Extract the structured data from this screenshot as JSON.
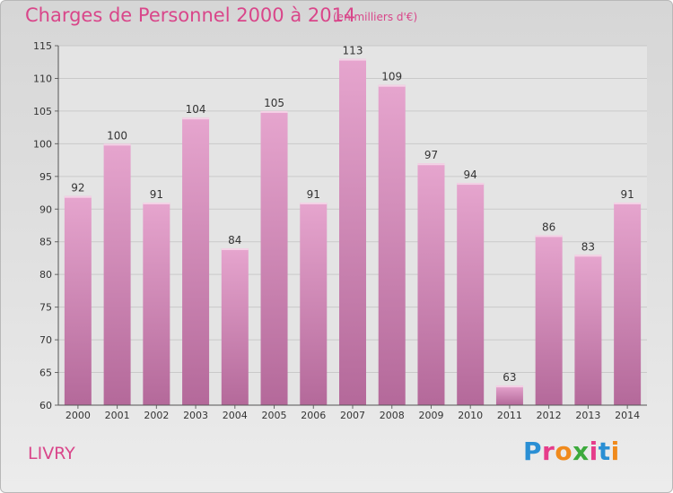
{
  "chart_data": {
    "type": "bar",
    "title": "Charges de Personnel 2000 à 2014",
    "subtitle": "(en milliers d'€)",
    "categories": [
      "2000",
      "2001",
      "2002",
      "2003",
      "2004",
      "2005",
      "2006",
      "2007",
      "2008",
      "2009",
      "2010",
      "2011",
      "2012",
      "2013",
      "2014"
    ],
    "values": [
      92,
      100,
      91,
      104,
      84,
      105,
      91,
      113,
      109,
      97,
      94,
      63,
      86,
      83,
      91
    ],
    "ylim": [
      60,
      115
    ],
    "yticks": [
      60,
      65,
      70,
      75,
      80,
      85,
      90,
      95,
      100,
      105,
      110,
      115
    ],
    "grid": true,
    "bar_color": "#c96fa4"
  },
  "footer": {
    "city": "LIVRY",
    "logo_letters": [
      {
        "ch": "P",
        "color": "#2a8fd4"
      },
      {
        "ch": "r",
        "color": "#e63c8a"
      },
      {
        "ch": "o",
        "color": "#f08a1c"
      },
      {
        "ch": "x",
        "color": "#3caa3c"
      },
      {
        "ch": "i",
        "color": "#e63c8a"
      },
      {
        "ch": "t",
        "color": "#2a8fd4"
      },
      {
        "ch": "i",
        "color": "#f08a1c"
      }
    ]
  }
}
